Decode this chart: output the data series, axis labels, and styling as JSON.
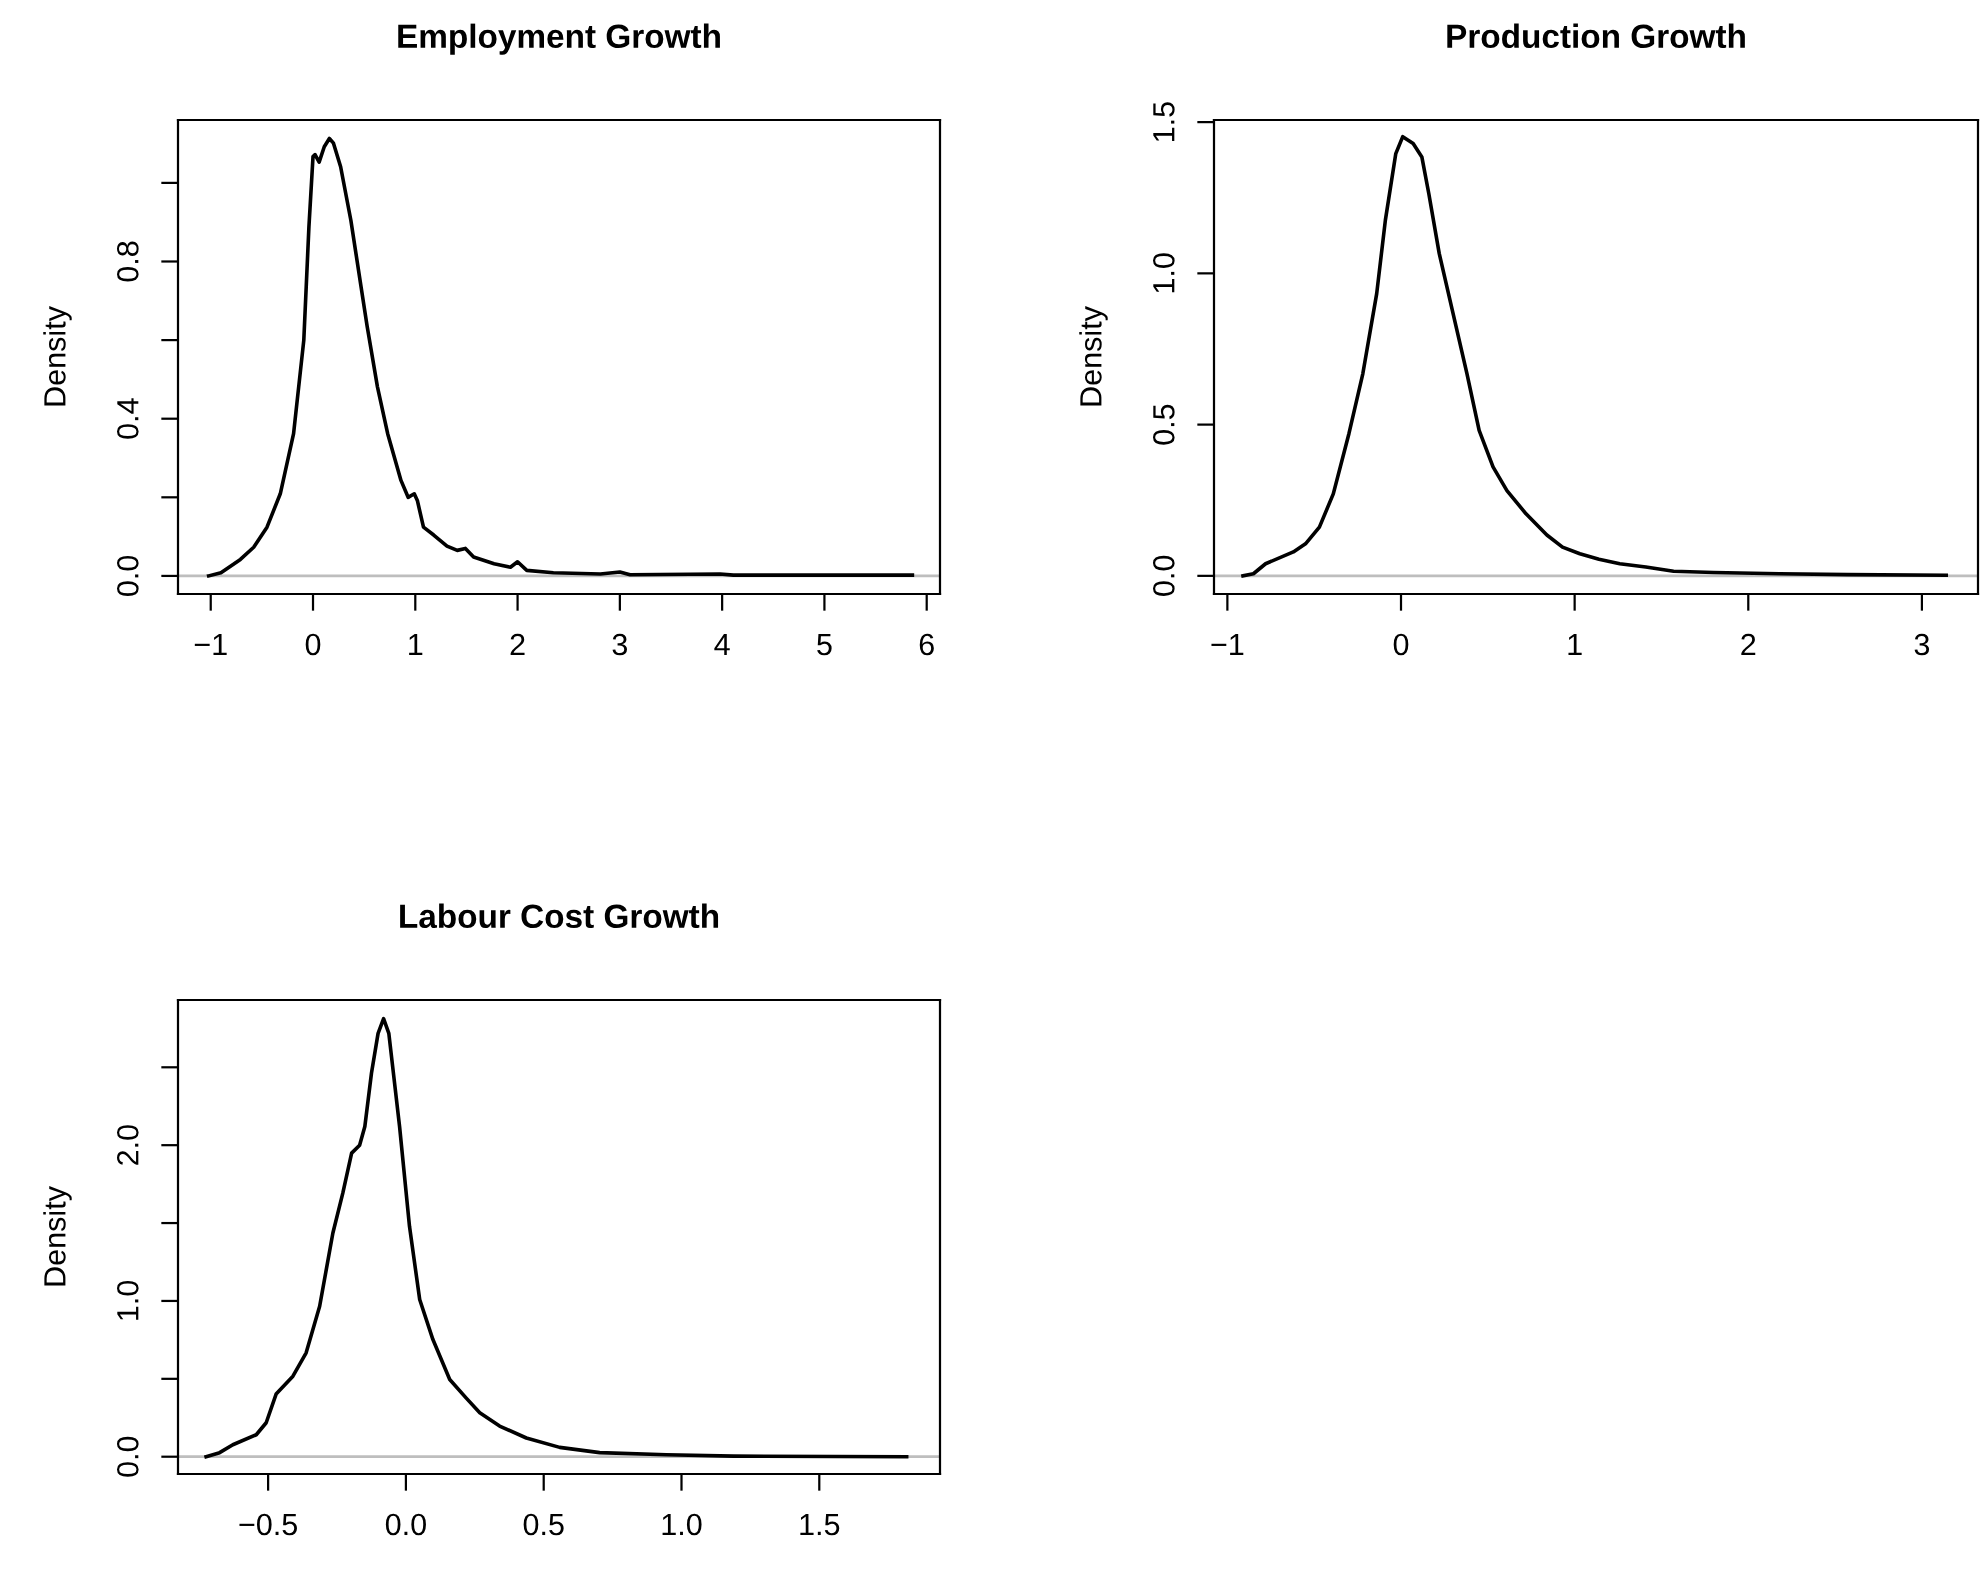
{
  "chart_data": [
    {
      "type": "line",
      "title": "Employment Growth",
      "ylabel": "Density",
      "color": "#000000",
      "x": [
        -1.02,
        -0.9,
        -0.71,
        -0.58,
        -0.45,
        -0.32,
        -0.19,
        -0.09,
        -0.04,
        0.0,
        0.02,
        0.06,
        0.11,
        0.16,
        0.2,
        0.27,
        0.37,
        0.47,
        0.53,
        0.63,
        0.73,
        0.86,
        0.93,
        0.99,
        1.02,
        1.08,
        1.18,
        1.31,
        1.41,
        1.49,
        1.57,
        1.77,
        1.93,
        2.0,
        2.09,
        2.35,
        2.81,
        3.0,
        3.1,
        3.98,
        4.11,
        5.86
      ],
      "values": [
        0,
        0.008,
        0.042,
        0.073,
        0.124,
        0.209,
        0.362,
        0.6,
        0.888,
        1.067,
        1.072,
        1.053,
        1.092,
        1.113,
        1.101,
        1.041,
        0.905,
        0.735,
        0.634,
        0.481,
        0.362,
        0.243,
        0.2,
        0.209,
        0.192,
        0.124,
        0.104,
        0.076,
        0.065,
        0.07,
        0.048,
        0.031,
        0.022,
        0.036,
        0.014,
        0.008,
        0.005,
        0.01,
        0.003,
        0.005,
        0.002,
        0.002
      ],
      "xlim": [
        -1.32,
        6.13
      ],
      "ylim": [
        -0.046,
        1.16
      ],
      "xticks": [
        {
          "value": -1,
          "label": "−1"
        },
        0,
        1,
        2,
        3,
        4,
        5,
        6
      ],
      "yticks": [
        {
          "value": 0,
          "label": "0.0"
        },
        {
          "value": 0.2,
          "label": null
        },
        0.4,
        {
          "value": 0.6,
          "label": null
        },
        0.8,
        {
          "value": 1.0,
          "label": null
        }
      ],
      "ref_lines": [
        {
          "axis": "y",
          "value": 0,
          "label": null,
          "color": "#bebebe"
        }
      ]
    },
    {
      "type": "line",
      "title": "Production Growth",
      "ylabel": "Density",
      "color": "#000000",
      "x": [
        -0.91,
        -0.85,
        -0.78,
        -0.62,
        -0.55,
        -0.47,
        -0.39,
        -0.3,
        -0.22,
        -0.14,
        -0.09,
        -0.03,
        0.01,
        0.07,
        0.12,
        0.16,
        0.22,
        0.3,
        0.38,
        0.45,
        0.53,
        0.61,
        0.72,
        0.84,
        0.93,
        1.03,
        1.14,
        1.26,
        1.41,
        1.57,
        1.8,
        2.18,
        2.57,
        3.14
      ],
      "values": [
        0,
        0.007,
        0.04,
        0.079,
        0.106,
        0.161,
        0.271,
        0.47,
        0.668,
        0.933,
        1.176,
        1.396,
        1.452,
        1.429,
        1.385,
        1.264,
        1.066,
        0.867,
        0.668,
        0.481,
        0.36,
        0.282,
        0.205,
        0.135,
        0.095,
        0.073,
        0.055,
        0.04,
        0.029,
        0.015,
        0.011,
        0.007,
        0.004,
        0.002
      ],
      "xlim": [
        -1.077,
        3.323
      ],
      "ylim": [
        -0.06,
        1.507
      ],
      "xticks": [
        {
          "value": -1,
          "label": "−1"
        },
        0,
        1,
        2,
        3
      ],
      "yticks": [
        {
          "value": 0,
          "label": "0.0"
        },
        0.5,
        {
          "value": 1,
          "label": "1.0"
        },
        1.5
      ],
      "ref_lines": [
        {
          "axis": "y",
          "value": 0,
          "label": null,
          "color": "#bebebe"
        }
      ]
    },
    {
      "type": "line",
      "title": "Labour Cost Growth",
      "ylabel": "Density",
      "color": "#000000",
      "x": [
        -0.725,
        -0.676,
        -0.628,
        -0.543,
        -0.507,
        -0.471,
        -0.41,
        -0.362,
        -0.313,
        -0.265,
        -0.229,
        -0.197,
        -0.168,
        -0.149,
        -0.125,
        -0.101,
        -0.081,
        -0.062,
        -0.023,
        0.013,
        0.05,
        0.098,
        0.159,
        0.219,
        0.268,
        0.34,
        0.437,
        0.558,
        0.703,
        0.945,
        1.188,
        1.817
      ],
      "values": [
        0,
        0.026,
        0.077,
        0.141,
        0.218,
        0.402,
        0.517,
        0.667,
        0.966,
        1.436,
        1.692,
        1.949,
        2.0,
        2.12,
        2.462,
        2.718,
        2.812,
        2.718,
        2.12,
        1.479,
        1.009,
        0.752,
        0.496,
        0.376,
        0.282,
        0.197,
        0.12,
        0.06,
        0.026,
        0.013,
        0.004,
        0
      ],
      "xlim": [
        -0.827,
        1.938
      ],
      "ylim": [
        -0.111,
        2.932
      ],
      "xticks": [
        {
          "value": -0.5,
          "label": "−0.5"
        },
        {
          "value": 0,
          "label": "0.0"
        },
        0.5,
        {
          "value": 1,
          "label": "1.0"
        },
        1.5
      ],
      "yticks": [
        {
          "value": 0,
          "label": "0.0"
        },
        {
          "value": 0.5,
          "label": null
        },
        {
          "value": 1,
          "label": "1.0"
        },
        {
          "value": 1.5,
          "label": null
        },
        {
          "value": 2,
          "label": "2.0"
        },
        {
          "value": 2.5,
          "label": null
        }
      ],
      "ref_lines": [
        {
          "axis": "y",
          "value": 0,
          "label": null,
          "color": "#bebebe"
        }
      ]
    }
  ]
}
